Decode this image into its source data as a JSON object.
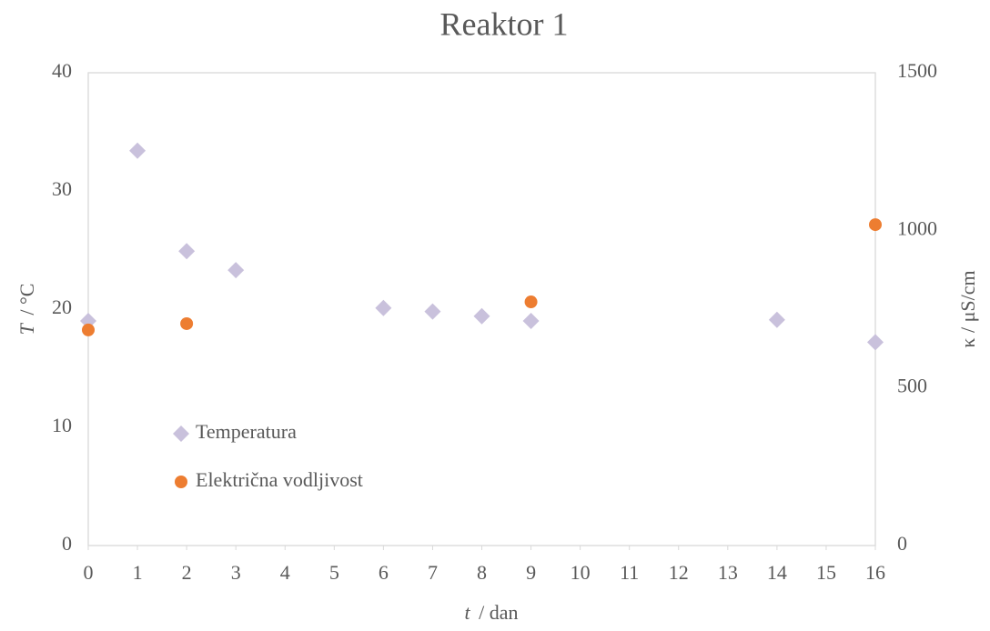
{
  "chart_data": {
    "type": "scatter",
    "title": "Reaktor 1",
    "xlabel_symbol": "t",
    "xlabel_unit": "/ dan",
    "ylabel_symbol": "T",
    "ylabel_unit": "/ °C",
    "y2label": "κ / μS/cm",
    "xlim": [
      0,
      16
    ],
    "xticks": [
      0,
      1,
      2,
      3,
      4,
      5,
      6,
      7,
      8,
      9,
      10,
      11,
      12,
      13,
      14,
      15,
      16
    ],
    "ylim": [
      0,
      40
    ],
    "yticks": [
      0,
      10,
      20,
      30,
      40
    ],
    "y2lim": [
      0,
      1500
    ],
    "y2ticks": [
      0,
      500,
      1000,
      1500
    ],
    "grid": false,
    "legend": "left",
    "series": [
      {
        "name": "Temperatura",
        "color": "#c9c1dc",
        "marker": "diamond",
        "x": [
          0,
          1,
          2,
          3,
          6,
          7,
          8,
          9,
          14,
          16
        ],
        "values": [
          19.0,
          33.4,
          24.9,
          23.3,
          20.1,
          19.8,
          19.4,
          19.0,
          19.1,
          17.2
        ]
      },
      {
        "name": "Električna vodljivost",
        "color": "#ed7d31",
        "marker": "circle",
        "axis": "y2",
        "x": [
          0,
          2,
          9,
          16
        ],
        "values": [
          684,
          704,
          773,
          1018
        ]
      }
    ]
  }
}
